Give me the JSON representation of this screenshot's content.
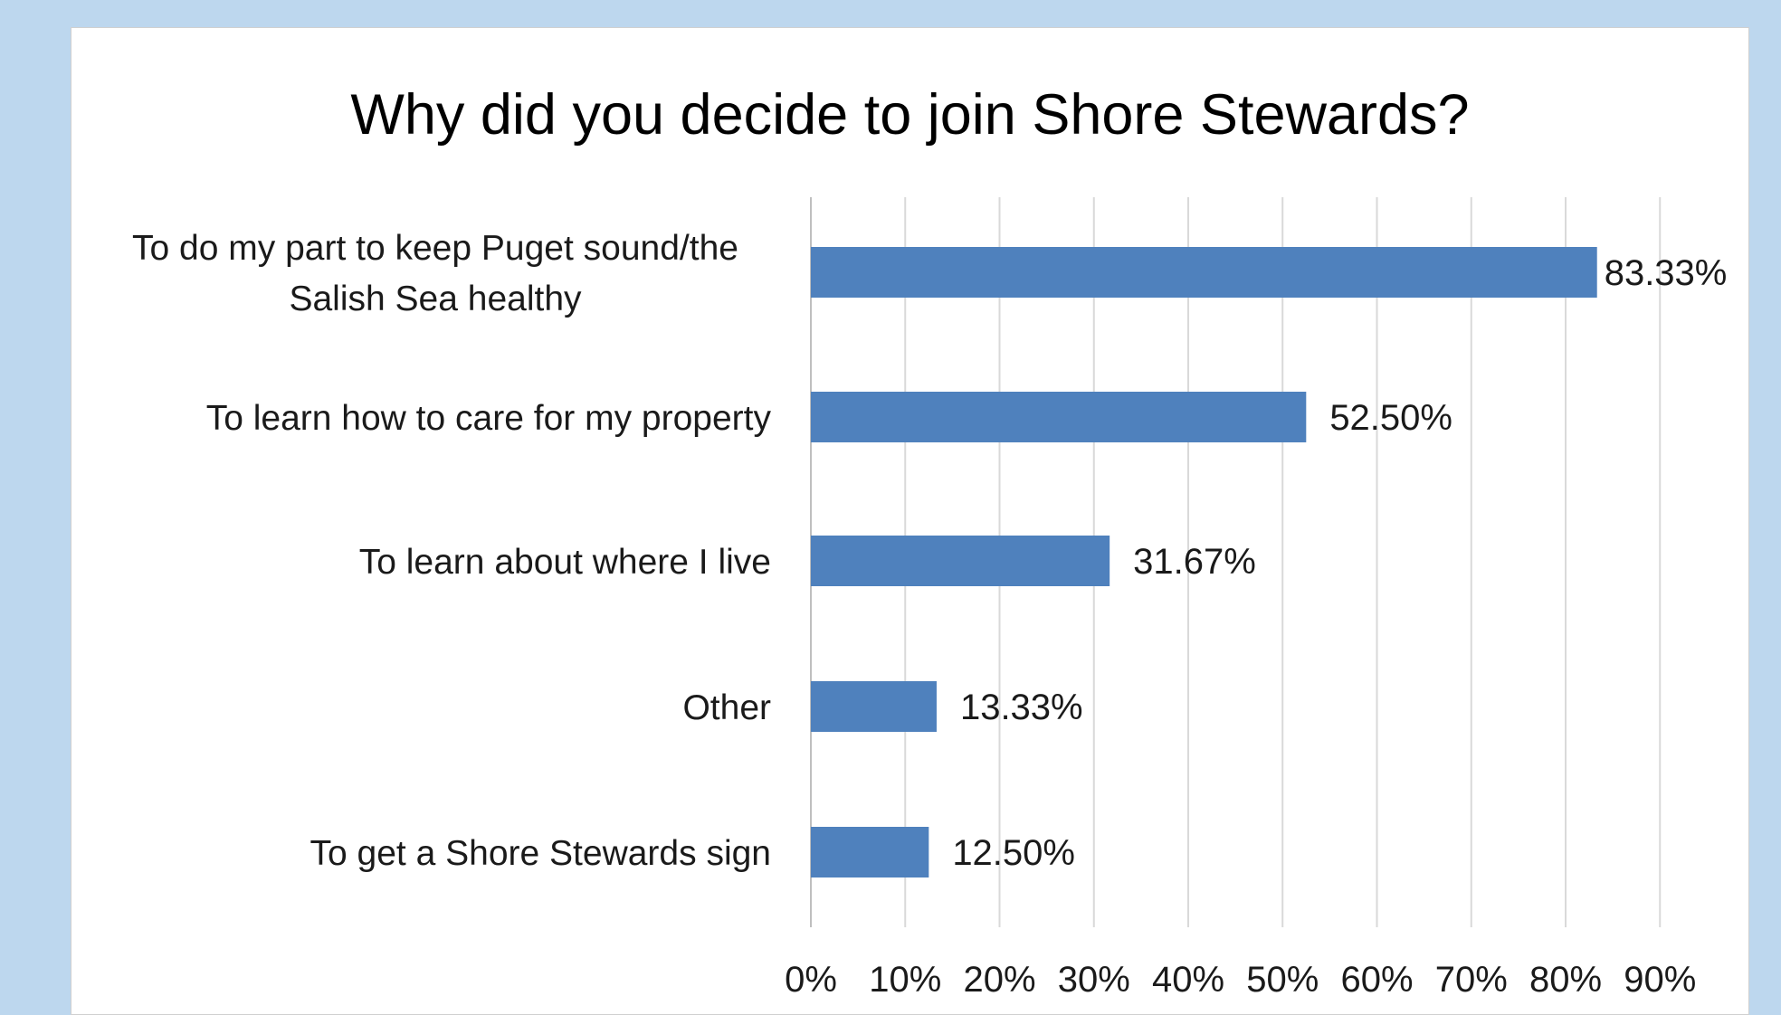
{
  "chart_data": {
    "type": "bar",
    "orientation": "horizontal",
    "title": "Why did you decide to join Shore Stewards?",
    "categories": [
      "To do my part to keep Puget sound/the Salish Sea healthy",
      "To learn how to care for my property",
      "To learn about where I live",
      "Other",
      "To get a Shore Stewards sign"
    ],
    "values": [
      83.33,
      52.5,
      31.67,
      13.33,
      12.5
    ],
    "data_labels": [
      "83.33%",
      "52.50%",
      "31.67%",
      "13.33%",
      "12.50%"
    ],
    "x_ticks": [
      "0%",
      "10%",
      "20%",
      "30%",
      "40%",
      "50%",
      "60%",
      "70%",
      "80%",
      "90%"
    ],
    "xlim": [
      0,
      90
    ],
    "xlabel": "",
    "ylabel": "",
    "grid": true,
    "legend": "none",
    "bar_color": "#4f81bd"
  }
}
